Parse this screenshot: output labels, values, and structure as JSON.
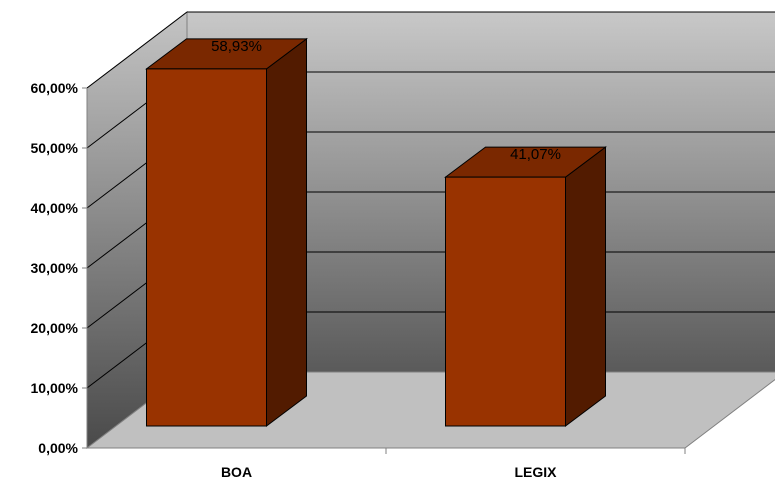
{
  "chart_data": {
    "type": "bar",
    "style": "3d-column",
    "categories": [
      "BOA",
      "LEGIX"
    ],
    "values": [
      58.93,
      41.07
    ],
    "data_labels": [
      "58,93%",
      "41,07%"
    ],
    "ylim": [
      0,
      60
    ],
    "y_ticks": [
      {
        "value": 0,
        "label": "0,00%"
      },
      {
        "value": 10,
        "label": "10,00%"
      },
      {
        "value": 20,
        "label": "20,00%"
      },
      {
        "value": 30,
        "label": "30,00%"
      },
      {
        "value": 40,
        "label": "40,00%"
      },
      {
        "value": 50,
        "label": "50,00%"
      },
      {
        "value": 60,
        "label": "60,00%"
      }
    ],
    "grid": true,
    "legend": "none",
    "colors": {
      "bar_front": "#993300",
      "bar_side": "#521b00",
      "bar_top": "#7a2800",
      "floor": "#c0c0c0",
      "wall_top": "#c8c8c8",
      "wall_bottom": "#5a5a5a"
    }
  }
}
